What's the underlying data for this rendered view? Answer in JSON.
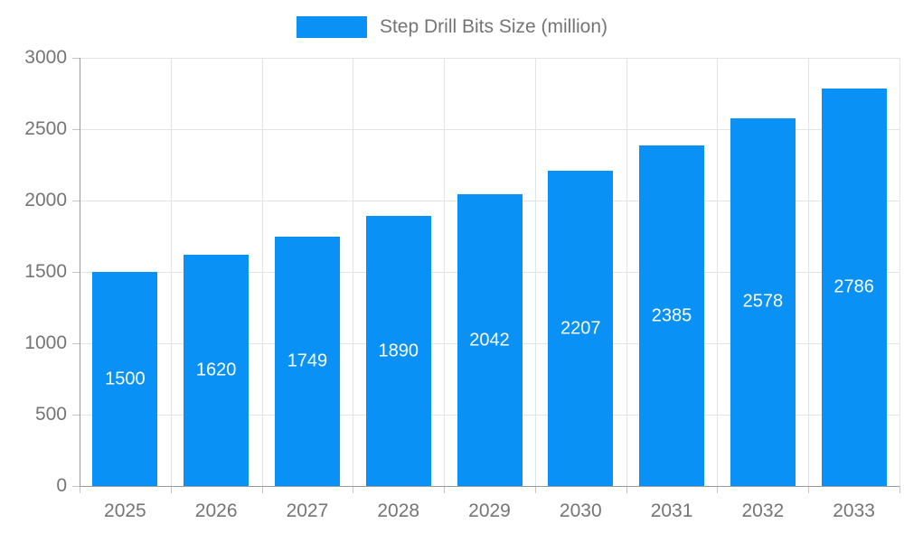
{
  "legend": {
    "label": "Step Drill Bits Size (million)"
  },
  "chart_data": {
    "type": "bar",
    "title": "Step Drill Bits Size (million)",
    "categories": [
      "2025",
      "2026",
      "2027",
      "2028",
      "2029",
      "2030",
      "2031",
      "2032",
      "2033"
    ],
    "values": [
      1500,
      1620,
      1749,
      1890,
      2042,
      2207,
      2385,
      2578,
      2786
    ],
    "xlabel": "",
    "ylabel": "",
    "ylim": [
      0,
      3000
    ],
    "yticks": [
      0,
      500,
      1000,
      1500,
      2000,
      2500,
      3000
    ],
    "grid": true,
    "legend_position": "top-center",
    "bar_label_position": "inside-center",
    "colors": {
      "bar": "#0a91f5",
      "bar_label": "#ffffff",
      "axis_text": "#757575",
      "grid_line": "#e3e3e3",
      "axis_line": "#9a9a9a",
      "tick_line": "#c4c4c4",
      "background": "#ffffff"
    }
  }
}
